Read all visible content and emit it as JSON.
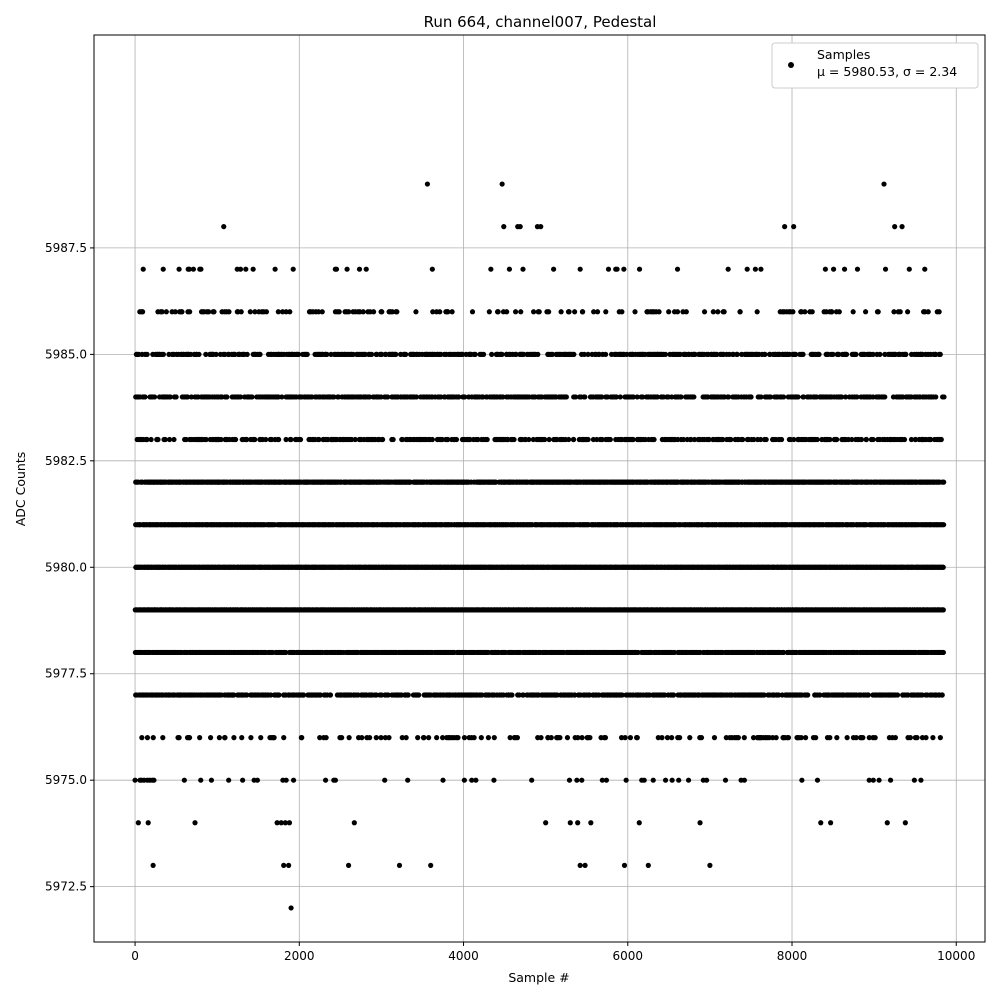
{
  "chart_data": {
    "type": "scatter",
    "title": "Run 664, channel007, Pedestal",
    "xlabel": "Sample #",
    "ylabel": "ADC Counts",
    "xlim": [
      -500,
      10350
    ],
    "ylim": [
      5971.2,
      5992.5
    ],
    "xticks": [
      0,
      2000,
      4000,
      6000,
      8000,
      10000
    ],
    "xtick_labels": [
      "0",
      "2000",
      "4000",
      "6000",
      "8000",
      "10000"
    ],
    "yticks": [
      5972.5,
      5975.0,
      5977.5,
      5980.0,
      5982.5,
      5985.0,
      5987.5
    ],
    "ytick_labels": [
      "5972.5",
      "5975.0",
      "5977.5",
      "5980.0",
      "5982.5",
      "5985.0",
      "5987.5"
    ],
    "grid": true,
    "legend": {
      "placement": "top-right",
      "entries": [
        "Samples",
        "μ = 5980.53, σ = 2.34"
      ]
    },
    "marker_color": "#000000",
    "series": [
      {
        "name": "Samples",
        "x_range": [
          0,
          9850
        ],
        "mean": 5980.53,
        "std": 2.34,
        "levels": [
          {
            "y": 5972,
            "x": [
              1900
            ]
          },
          {
            "y": 5973,
            "x": [
              220,
              1810,
              1870,
              2600,
              3220,
              3600,
              5420,
              5480,
              5960,
              6250,
              7000
            ]
          },
          {
            "y": 5974,
            "x": [
              40,
              160,
              730,
              1730,
              1780,
              1830,
              1880,
              2670,
              5000,
              5300,
              5390,
              5550,
              6140,
              6880,
              8350,
              8470,
              9160,
              9380
            ]
          },
          {
            "y": 5975,
            "x": [
              0,
              60,
              80,
              110,
              150,
              180,
              210,
              230,
              600,
              800,
              930,
              1140,
              1310,
              1450,
              1490,
              1800,
              1840,
              1930,
              2320,
              2420,
              2440,
              3040,
              3320,
              3750,
              4010,
              4100,
              4150,
              4370,
              4830,
              5290,
              5380,
              5440,
              5690,
              5740,
              5980,
              6170,
              6200,
              6310,
              6460,
              6540,
              6620,
              6740,
              6920,
              6960,
              7190,
              7380,
              7420,
              8120,
              8310,
              8940,
              8990,
              9060,
              9200,
              9490,
              9570
            ]
          },
          {
            "y": 5988,
            "x": [
              1080,
              4490,
              4660,
              4690,
              4900,
              4940,
              7910,
              8020,
              9250,
              9340
            ]
          },
          {
            "y": 5989,
            "x": [
              3560,
              4470,
              9120
            ]
          }
        ],
        "dense_levels": [
          {
            "y": 5976,
            "density": 0.2
          },
          {
            "y": 5977,
            "density": 0.65
          },
          {
            "y": 5978,
            "density": 0.9
          },
          {
            "y": 5979,
            "density": 1.0
          },
          {
            "y": 5980,
            "density": 1.0
          },
          {
            "y": 5981,
            "density": 0.95
          },
          {
            "y": 5982,
            "density": 0.9
          },
          {
            "y": 5983,
            "density": 0.45
          },
          {
            "y": 5984,
            "density": 0.55
          },
          {
            "y": 5985,
            "density": 0.5
          },
          {
            "y": 5986,
            "density": 0.18
          },
          {
            "y": 5987,
            "density": 0.05
          }
        ]
      }
    ]
  }
}
